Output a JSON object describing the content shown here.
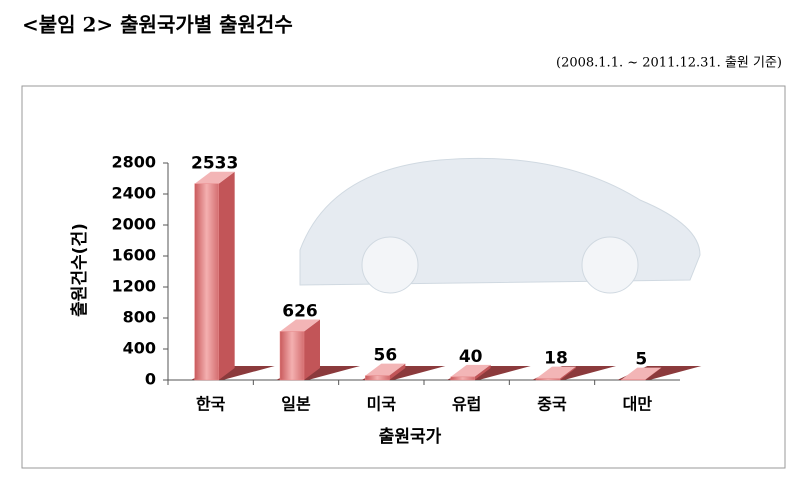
{
  "chart_data": {
    "type": "bar3d",
    "title": "<붙임 2> 출원국가별 출원건수",
    "subtitle": "(2008.1.1. ~ 2011.12.31. 출원 기준)",
    "y_label": "출원건수(건)",
    "x_label": "출원국가",
    "categories": [
      "한국",
      "일본",
      "미국",
      "유럽",
      "중국",
      "대만"
    ],
    "values": [
      2533,
      626,
      56,
      40,
      18,
      5
    ],
    "color": "#e8898a",
    "ylim": [
      0,
      2800
    ],
    "yticks": [
      0,
      400,
      800,
      1200,
      1600,
      2000,
      2400,
      2800
    ]
  }
}
